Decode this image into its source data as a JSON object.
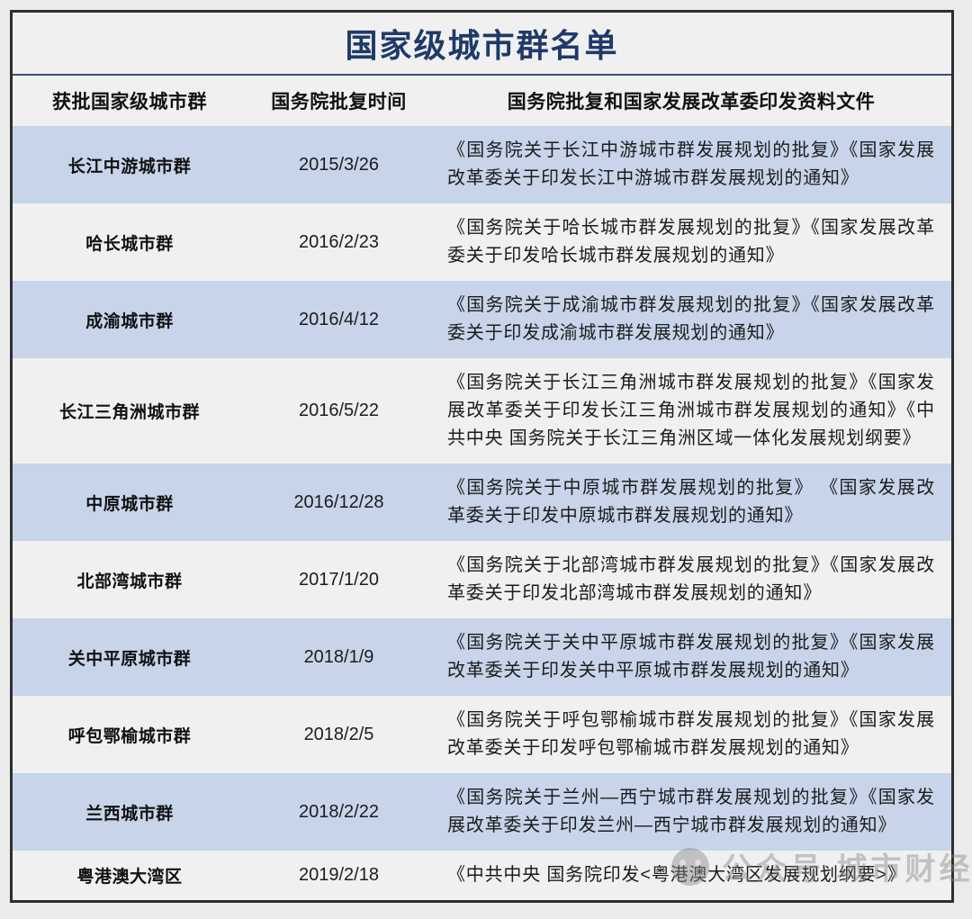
{
  "chart_data": {
    "type": "table",
    "title": "国家级城市群名单",
    "columns": [
      "获批国家级城市群",
      "国务院批复时间",
      "国务院批复和国家发展改革委印发资料文件"
    ],
    "rows": [
      {
        "name": "长江中游城市群",
        "date": "2015/3/26",
        "docs": "《国务院关于长江中游城市群发展规划的批复》《国家发展改革委关于印发长江中游城市群发展规划的通知》"
      },
      {
        "name": "哈长城市群",
        "date": "2016/2/23",
        "docs": "《国务院关于哈长城市群发展规划的批复》《国家发展改革委关于印发哈长城市群发展规划的通知》"
      },
      {
        "name": "成渝城市群",
        "date": "2016/4/12",
        "docs": "《国务院关于成渝城市群发展规划的批复》《国家发展改革委关于印发成渝城市群发展规划的通知》"
      },
      {
        "name": "长江三角洲城市群",
        "date": "2016/5/22",
        "docs": "《国务院关于长江三角洲城市群发展规划的批复》《国家发展改革委关于印发长江三角洲城市群发展规划的通知》《中共中央 国务院关于长江三角洲区域一体化发展规划纲要》"
      },
      {
        "name": "中原城市群",
        "date": "2016/12/28",
        "docs": "《国务院关于中原城市群发展规划的批复》 《国家发展改革委关于印发中原城市群发展规划的通知》"
      },
      {
        "name": "北部湾城市群",
        "date": "2017/1/20",
        "docs": "《国务院关于北部湾城市群发展规划的批复》《国家发展改革委关于印发北部湾城市群发展规划的通知》"
      },
      {
        "name": "关中平原城市群",
        "date": "2018/1/9",
        "docs": "《国务院关于关中平原城市群发展规划的批复》《国家发展改革委关于印发关中平原城市群发展规划的通知》"
      },
      {
        "name": "呼包鄂榆城市群",
        "date": "2018/2/5",
        "docs": "《国务院关于呼包鄂榆城市群发展规划的批复》《国家发展改革委关于印发呼包鄂榆城市群发展规划的通知》"
      },
      {
        "name": "兰西城市群",
        "date": "2018/2/22",
        "docs": "《国务院关于兰州—西宁城市群发展规划的批复》《国家发展改革委关于印发兰州—西宁城市群发展规划的通知》"
      },
      {
        "name": "粤港澳大湾区",
        "date": "2019/2/18",
        "docs": "《中共中央 国务院印发<粤港澳大湾区发展规划纲要>》"
      }
    ],
    "layout": {
      "row_striping": "alternating starting with blue on first data row",
      "grid": "off"
    }
  },
  "colors": {
    "row_stripe_blue": "#c7d4ea",
    "row_base_gray": "#f0f0f0",
    "title_navy": "#1f3a68",
    "title_rule_navy": "#32527e",
    "outer_border": "#2e2e2e",
    "page_background": "#ebebeb",
    "watermark_gray": "#8a8a8a"
  },
  "watermark": {
    "text": "公众号  城市财经",
    "icon": "official-account-avatar-icon"
  }
}
